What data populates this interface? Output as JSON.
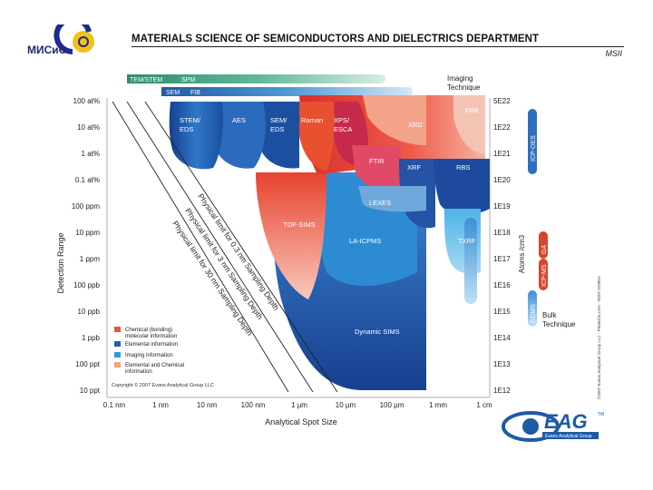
{
  "header": {
    "title": "MATERIALS SCIENCE OF SEMICONDUCTORS AND DIELECTRICS DEPARTMENT",
    "subtitle": "MSII",
    "logo_text": "МИСиС"
  },
  "imaging": {
    "bar1": [
      "TEM/STEM",
      "SPM"
    ],
    "bar2": [
      "SEM",
      "FIB"
    ],
    "label": [
      "Imaging",
      "Technique"
    ]
  },
  "axes": {
    "ylabel": "Detection Range",
    "yticks": [
      "100 at%",
      "10 at%",
      "1 at%",
      "0.1 at%",
      "100 ppm",
      "10 ppm",
      "1 ppm",
      "100 ppb",
      "10 ppb",
      "1 ppb",
      "100 ppt",
      "10 ppt"
    ],
    "rticks": [
      "5E22",
      "1E22",
      "1E21",
      "1E20",
      "1E19",
      "1E18",
      "1E17",
      "1E16",
      "1E15",
      "1E14",
      "1E13",
      "1E12"
    ],
    "rlabel": "Atoms /cm3",
    "xticks": [
      "0.1 nm",
      "1 nm",
      "10 nm",
      "100 nm",
      "1 µm",
      "10 µm",
      "100 µm",
      "1 mm",
      "1 cm"
    ],
    "xlabel": "Analytical Spot Size"
  },
  "techniques": {
    "stem_eds": [
      "STEM/",
      "EDS"
    ],
    "aes": "AES",
    "sem_eds": [
      "SEM/",
      "EDS"
    ],
    "raman": "Raman",
    "xps": [
      "XPS/",
      "ESCA"
    ],
    "xrd": "XRD",
    "xrr": "XRR",
    "ftir": "FTIR",
    "xrf": "XRF",
    "rbs": "RBS",
    "lexes": "LEXES",
    "tofsims": "TOF-SIMS",
    "lapms": "LA-ICPMS",
    "txrf": "TXRF",
    "dsims": "Dynamic SIMS"
  },
  "bulk": {
    "icp_oes": "ICP-OES",
    "ga": "GA",
    "icp_ms": "ICP-MS",
    "gdms": "GDMS",
    "label": [
      "Bulk",
      "Technique"
    ]
  },
  "limits": [
    "Physical limit for 0.3 nm Sampling Depth",
    "Physical limit for 3 nm Sampling Depth",
    "Physical limit for 30 nm Sampling Depth"
  ],
  "legend": [
    {
      "label": [
        "Chemical (bonding)",
        "molecular information"
      ],
      "color": "#e8562e"
    },
    {
      "label": [
        "Elemental information"
      ],
      "color": "#1f5fae"
    },
    {
      "label": [
        "Imaging information"
      ],
      "color": "#2a9ed8"
    },
    {
      "label": [
        "Elemental and Chemical",
        "information"
      ],
      "color": "#f2a27a"
    }
  ],
  "copyright": "Copyright © 2007 Evans Analytical Group LLC",
  "side_copyright": "©2007 Evans Analytical Group LLC - Printed in USA - 05/07 07085A",
  "eag": {
    "logo": "EAG",
    "tm": "TM",
    "sub": "Evans Analytical Group"
  }
}
